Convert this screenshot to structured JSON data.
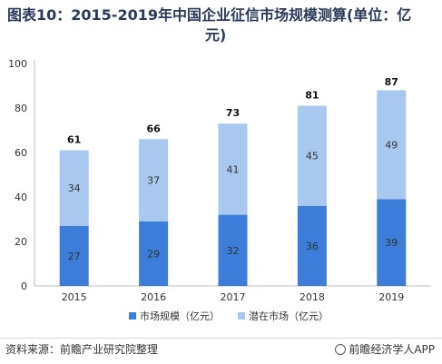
{
  "title": "图表10：2015-2019年中国企业征信市场规模测算(单位：亿元)",
  "title_line1": "图表10：2015-2019年中国企业征信市场规模测算(单位：亿",
  "title_line2": "元)",
  "footer": {
    "source": "资料来源：前瞻产业研究院整理",
    "brand": "前瞻经济学人APP"
  },
  "colors": {
    "market": "#3c7dd9",
    "potential": "#a9c8ef",
    "title": "#2a3a5c"
  },
  "chart_data": {
    "type": "bar",
    "stacked": true,
    "categories": [
      "2015",
      "2016",
      "2017",
      "2018",
      "2019"
    ],
    "series": [
      {
        "name": "市场规模（亿元）",
        "values": [
          27,
          29,
          32,
          36,
          39
        ]
      },
      {
        "name": "潜在市场（亿元）",
        "values": [
          34,
          37,
          41,
          45,
          49
        ]
      }
    ],
    "totals": [
      61,
      66,
      73,
      81,
      87
    ],
    "y_ticks": [
      0,
      20,
      40,
      60,
      80,
      100
    ],
    "ylim": [
      0,
      100
    ],
    "grid": false,
    "legend_position": "bottom"
  }
}
